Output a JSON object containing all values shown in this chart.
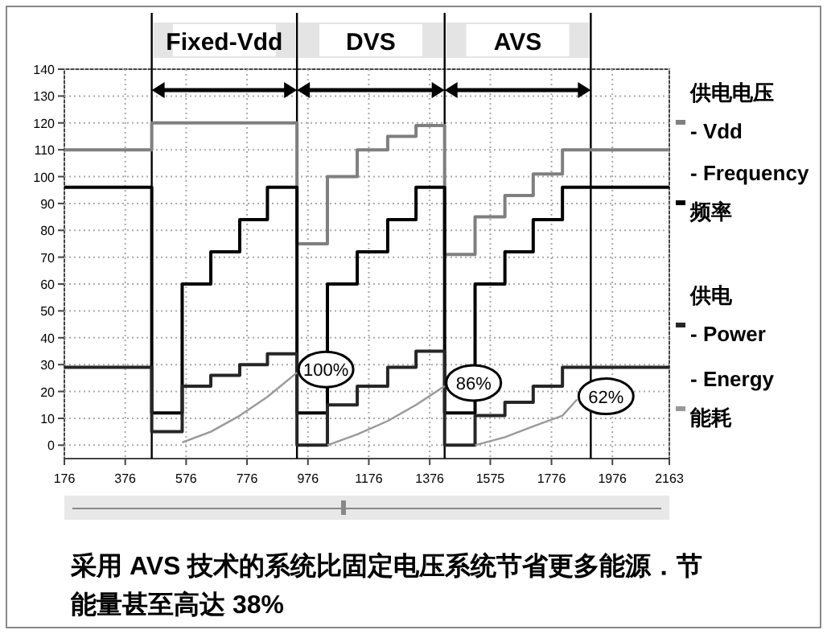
{
  "chart_data": {
    "type": "step",
    "xlim": [
      176,
      2163
    ],
    "ylim": [
      -5,
      140
    ],
    "xticks": [
      176,
      376,
      576,
      776,
      976,
      1176,
      1376,
      1575,
      1776,
      1976,
      2163
    ],
    "yticks": [
      0,
      10,
      20,
      30,
      40,
      50,
      60,
      70,
      80,
      90,
      100,
      110,
      120,
      130,
      140
    ],
    "grid": true,
    "legend": "right",
    "line_style": "solid",
    "marker": "none",
    "series": [
      {
        "name": "供电电压\n- Vdd",
        "color": "#7f7f7f",
        "x": [
          176,
          463,
          940,
          1040,
          1138,
          1238,
          1331,
          1425,
          1525,
          1623,
          1716,
          1812,
          2163
        ],
        "values": [
          110,
          120,
          75,
          100,
          110,
          115,
          119,
          71,
          85,
          93,
          101,
          110,
          110
        ]
      },
      {
        "name": "- Frequency\n频率",
        "color": "#000000",
        "x": [
          176,
          463,
          563,
          657,
          752,
          843,
          940,
          1040,
          1138,
          1238,
          1331,
          1425,
          1525,
          1623,
          1716,
          1812,
          2163
        ],
        "values": [
          96,
          12,
          60,
          72,
          84,
          96,
          12,
          60,
          72,
          84,
          96,
          12,
          60,
          72,
          84,
          96,
          96
        ]
      },
      {
        "name": "供电\n- Power",
        "color": "#262626",
        "x": [
          176,
          463,
          563,
          657,
          752,
          843,
          940,
          1040,
          1138,
          1238,
          1331,
          1425,
          1525,
          1623,
          1716,
          1812,
          2163
        ],
        "values": [
          29,
          5,
          22,
          26,
          30,
          34,
          0,
          15,
          22,
          29,
          35,
          0,
          11,
          16,
          22,
          29,
          29
        ]
      },
      {
        "name": "- Energy\n能耗",
        "color": "#999999",
        "type": "line",
        "x": [
          563,
          657,
          752,
          843,
          940,
          null,
          1040,
          1138,
          1238,
          1331,
          1425,
          null,
          1525,
          1623,
          1716,
          1812,
          1860
        ],
        "values": [
          1,
          5,
          11,
          18,
          27,
          null,
          0,
          4,
          9,
          15,
          22,
          null,
          0,
          3,
          7,
          11,
          17
        ]
      }
    ],
    "ref_lines": [
      {
        "axis": "x",
        "value": 463,
        "label": "Fixed-Vdd"
      },
      {
        "axis": "x",
        "value": 940,
        "label": "DVS"
      },
      {
        "axis": "x",
        "value": 1425,
        "label": "AVS"
      },
      {
        "axis": "x",
        "value": 1905
      }
    ],
    "annotations": [
      {
        "text": "100%",
        "x": 940,
        "y": 27
      },
      {
        "text": "86%",
        "x": 1425,
        "y": 22
      },
      {
        "text": "62%",
        "x": 1860,
        "y": 17
      },
      "采用 AVS 技术的系统比固定电压系统节省更多能源．节能量甚至高达 38%"
    ]
  }
}
